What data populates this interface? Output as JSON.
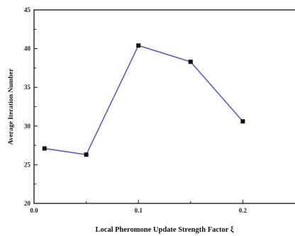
{
  "chart_data": {
    "type": "line",
    "title": "",
    "xlabel": "Local Pheromone Update Strength Factor ξ",
    "ylabel": "Average Iteration Number",
    "x": [
      0.01,
      0.05,
      0.1,
      0.15,
      0.2
    ],
    "series": [
      {
        "values": [
          27.1,
          26.3,
          40.4,
          38.3,
          30.6
        ]
      }
    ],
    "xlim": [
      0.0,
      0.25
    ],
    "ylim": [
      20,
      45
    ],
    "xticks": [
      0.0,
      0.1,
      0.2
    ],
    "xtick_labels": [
      "0.0",
      "0.1",
      "0.2"
    ],
    "yticks": [
      20,
      25,
      30,
      35,
      40,
      45
    ],
    "ytick_labels": [
      "20",
      "25",
      "30",
      "35",
      "40",
      "45"
    ],
    "grid": false,
    "colors": {
      "line": "#5a5fc4",
      "marker": "#111111",
      "axis": "#111111"
    }
  }
}
